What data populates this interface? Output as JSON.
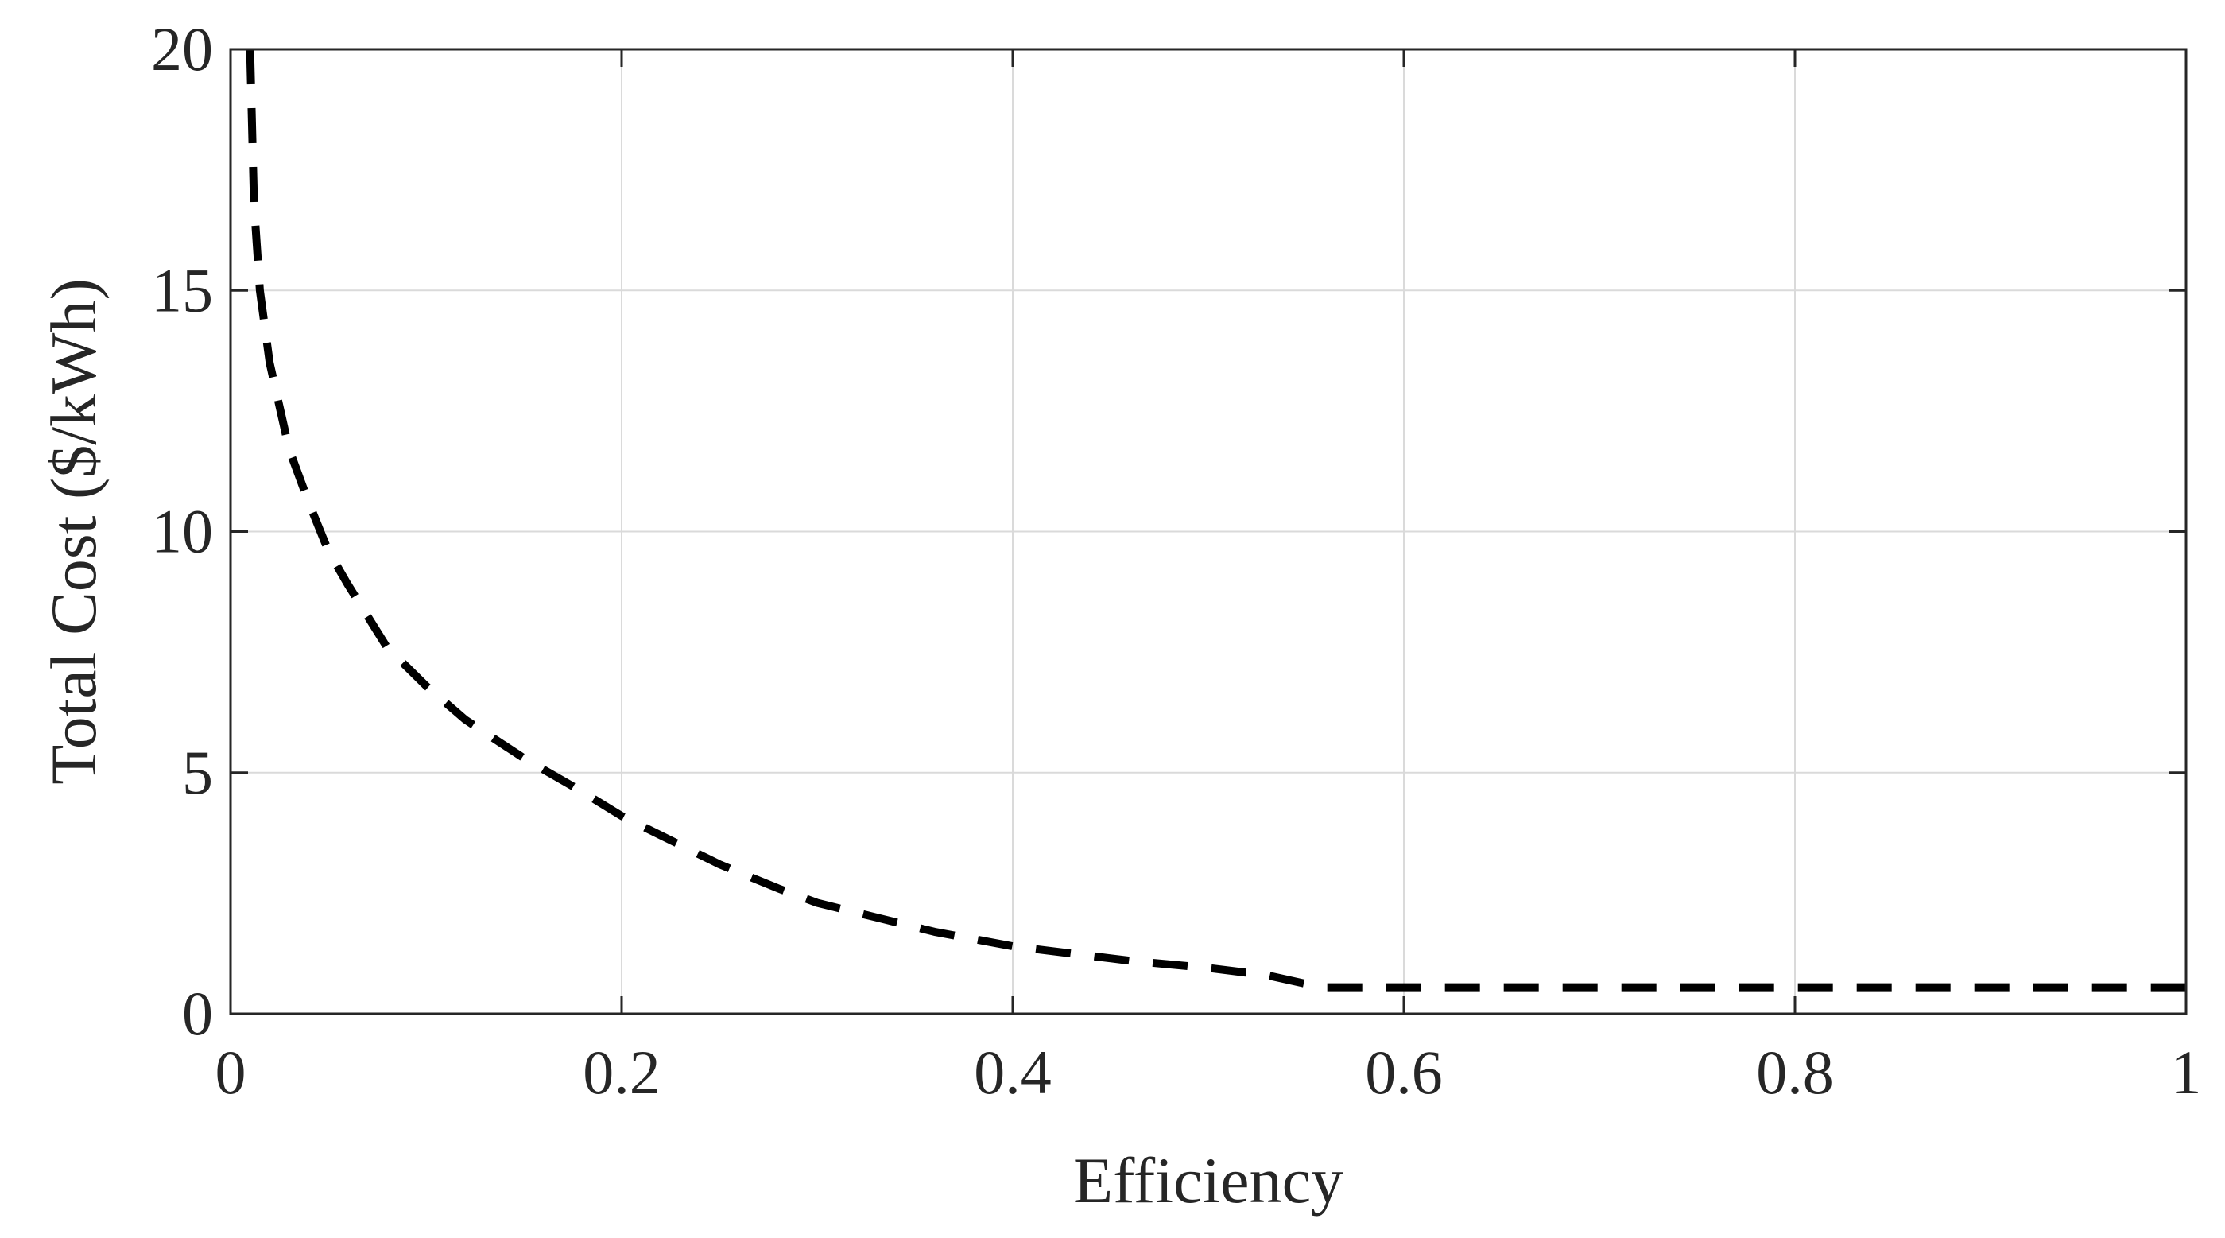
{
  "chart_data": {
    "type": "line",
    "title": "",
    "xlabel": "Efficiency",
    "ylabel": "Total Cost ($/kWh)",
    "xlim": [
      0,
      1
    ],
    "ylim": [
      0,
      20
    ],
    "grid": true,
    "x_ticks": [
      0,
      0.2,
      0.4,
      0.6,
      0.8,
      1
    ],
    "x_tick_labels": [
      "0",
      "0.2",
      "0.4",
      "0.6",
      "0.8",
      "1"
    ],
    "y_ticks": [
      0,
      5,
      10,
      15,
      20
    ],
    "y_tick_labels": [
      "0",
      "5",
      "10",
      "15",
      "20"
    ],
    "series": [
      {
        "name": "Total Cost",
        "style": "dashed",
        "color": "#000000",
        "x": [
          0.01,
          0.012,
          0.015,
          0.02,
          0.03,
          0.04,
          0.05,
          0.06,
          0.08,
          0.1,
          0.12,
          0.15,
          0.18,
          0.2,
          0.22,
          0.25,
          0.28,
          0.3,
          0.33,
          0.36,
          0.4,
          0.43,
          0.46,
          0.5,
          0.53,
          0.55,
          0.56,
          0.6,
          0.7,
          0.8,
          0.9,
          1.0
        ],
        "values": [
          20.0,
          16.8,
          15.0,
          13.5,
          11.7,
          10.6,
          9.6,
          8.9,
          7.6,
          6.8,
          6.1,
          5.3,
          4.6,
          4.1,
          3.7,
          3.1,
          2.6,
          2.3,
          2.0,
          1.7,
          1.4,
          1.25,
          1.1,
          0.95,
          0.8,
          0.62,
          0.55,
          0.55,
          0.55,
          0.55,
          0.55,
          0.55
        ]
      }
    ]
  }
}
